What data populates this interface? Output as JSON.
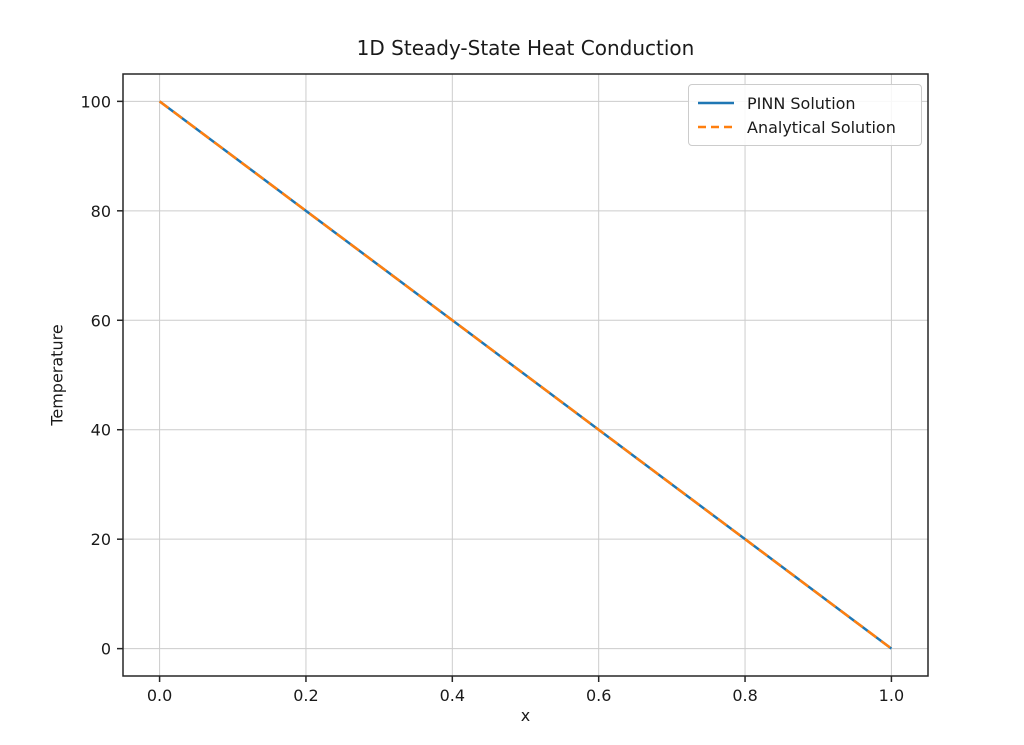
{
  "figure": {
    "background": "#ffffff",
    "text_color": "#1a1a1a",
    "axis_color": "#262626",
    "grid_color": "#cccccc"
  },
  "chart_data": {
    "type": "line",
    "title": "1D Steady-State Heat Conduction",
    "xlabel": "x",
    "ylabel": "Temperature",
    "xlim": [
      -0.05,
      1.05
    ],
    "ylim": [
      -5,
      105
    ],
    "grid": true,
    "legend_position": "upper right",
    "xticks": [
      0.0,
      0.2,
      0.4,
      0.6,
      0.8,
      1.0
    ],
    "xtick_labels": [
      "0.0",
      "0.2",
      "0.4",
      "0.6",
      "0.8",
      "1.0"
    ],
    "yticks": [
      0,
      20,
      40,
      60,
      80,
      100
    ],
    "ytick_labels": [
      "0",
      "20",
      "40",
      "60",
      "80",
      "100"
    ],
    "x": [
      0.0,
      0.2,
      0.4,
      0.6,
      0.8,
      1.0
    ],
    "series": [
      {
        "name": "PINN Solution",
        "values": [
          100,
          80,
          60,
          40,
          20,
          0
        ],
        "color": "#1f77b4",
        "style": "solid"
      },
      {
        "name": "Analytical Solution",
        "values": [
          100,
          80,
          60,
          40,
          20,
          0
        ],
        "color": "#ff7f0e",
        "style": "dashed"
      }
    ]
  }
}
